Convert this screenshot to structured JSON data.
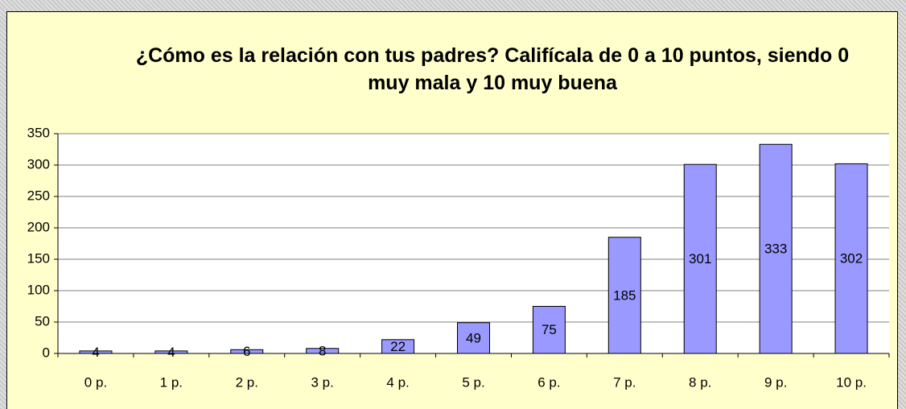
{
  "chart_data": {
    "type": "bar",
    "title": "¿Cómo es la relación con tus padres? Califícala de 0 a 10 puntos, siendo 0 muy mala y 10 muy buena",
    "categories": [
      "0 p.",
      "1 p.",
      "2 p.",
      "3 p.",
      "4 p.",
      "5 p.",
      "6 p.",
      "7 p.",
      "8 p.",
      "9 p.",
      "10 p."
    ],
    "values": [
      4,
      4,
      6,
      8,
      22,
      49,
      75,
      185,
      301,
      333,
      302
    ],
    "color": "#9999ff",
    "ylim": [
      0,
      350
    ],
    "yticks": [
      0,
      50,
      100,
      150,
      200,
      250,
      300,
      350
    ],
    "grid": true
  }
}
